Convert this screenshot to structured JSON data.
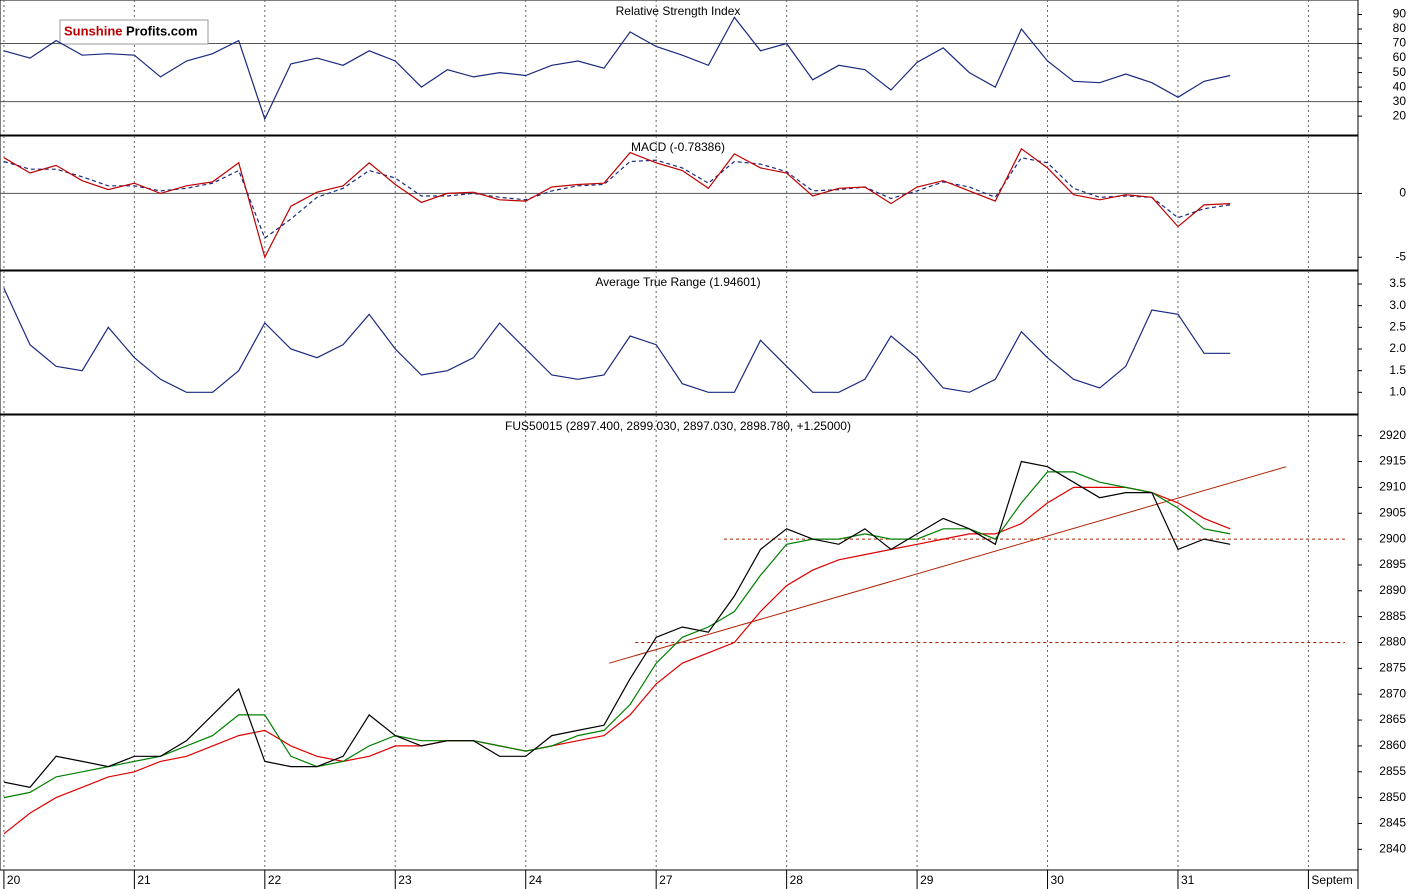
{
  "logo": {
    "part1": "Sunshine",
    "part2": "Profits.com"
  },
  "chart_data": [
    {
      "type": "line",
      "title": "Relative Strength Index",
      "x": [
        0,
        0.2,
        0.4,
        0.6,
        0.8,
        1,
        1.2,
        1.4,
        1.6,
        1.8,
        2,
        2.2,
        2.4,
        2.6,
        2.8,
        3,
        3.2,
        3.4,
        3.6,
        3.8,
        4,
        4.2,
        4.4,
        4.6,
        4.8,
        5,
        5.2,
        5.4,
        5.6,
        5.8,
        6,
        6.2,
        6.4,
        6.6,
        6.8,
        7,
        7.2,
        7.4,
        7.6,
        7.8,
        8,
        8.2,
        8.4,
        8.6,
        8.8,
        9,
        9.2,
        9.4
      ],
      "series": [
        {
          "name": "RSI",
          "color": "#1a2a80",
          "values": [
            65,
            60,
            72,
            62,
            63,
            62,
            47,
            58,
            63,
            72,
            18,
            56,
            60,
            55,
            65,
            58,
            40,
            52,
            47,
            50,
            48,
            55,
            58,
            53,
            78,
            68,
            62,
            55,
            88,
            65,
            70,
            45,
            55,
            52,
            38,
            57,
            67,
            50,
            40,
            80,
            58,
            44,
            43,
            49,
            43,
            33,
            44,
            48
          ]
        }
      ],
      "levels": [
        70,
        30
      ],
      "xlim": [
        -0.03,
        10.38
      ],
      "ylim": [
        7,
        100
      ],
      "yticks": [
        20,
        30,
        40,
        50,
        60,
        70,
        80,
        90
      ]
    },
    {
      "type": "line",
      "title": "MACD (-0.78386)",
      "x": [
        0,
        0.2,
        0.4,
        0.6,
        0.8,
        1,
        1.2,
        1.4,
        1.6,
        1.8,
        2,
        2.2,
        2.4,
        2.6,
        2.8,
        3,
        3.2,
        3.4,
        3.6,
        3.8,
        4,
        4.2,
        4.4,
        4.6,
        4.8,
        5,
        5.2,
        5.4,
        5.6,
        5.8,
        6,
        6.2,
        6.4,
        6.6,
        6.8,
        7,
        7.2,
        7.4,
        7.6,
        7.8,
        8,
        8.2,
        8.4,
        8.6,
        8.8,
        9,
        9.2,
        9.4
      ],
      "series": [
        {
          "name": "MACD",
          "color": "#c00000",
          "values": [
            2.8,
            1.6,
            2.2,
            1.0,
            0.3,
            0.8,
            0.0,
            0.6,
            0.9,
            2.4,
            -5.0,
            -1.0,
            0.1,
            0.6,
            2.4,
            0.7,
            -0.7,
            0.0,
            0.1,
            -0.5,
            -0.6,
            0.5,
            0.7,
            0.8,
            3.2,
            2.4,
            1.8,
            0.4,
            3.1,
            2.0,
            1.6,
            -0.2,
            0.4,
            0.5,
            -0.8,
            0.5,
            1.0,
            0.2,
            -0.6,
            3.5,
            2.0,
            -0.1,
            -0.5,
            -0.1,
            -0.3,
            -2.6,
            -0.9,
            -0.8
          ]
        },
        {
          "name": "Signal",
          "color": "#1a2a80",
          "dashed": true,
          "values": [
            2.5,
            1.9,
            1.9,
            1.3,
            0.6,
            0.6,
            0.2,
            0.4,
            0.8,
            1.8,
            -3.5,
            -2.0,
            -0.3,
            0.4,
            1.8,
            1.2,
            -0.2,
            -0.2,
            0.0,
            -0.3,
            -0.5,
            0.2,
            0.6,
            0.7,
            2.5,
            2.6,
            2.0,
            0.8,
            2.5,
            2.3,
            1.7,
            0.2,
            0.3,
            0.5,
            -0.4,
            0.2,
            0.9,
            0.5,
            -0.3,
            2.8,
            2.4,
            0.4,
            -0.3,
            -0.2,
            -0.3,
            -1.9,
            -1.2,
            -0.9
          ]
        }
      ],
      "levels": [
        0
      ],
      "xlim": [
        -0.03,
        10.38
      ],
      "ylim": [
        -6,
        4.5
      ],
      "yticks": [
        -5,
        0
      ]
    },
    {
      "type": "line",
      "title": "Average True Range (1.94601)",
      "x": [
        0,
        0.2,
        0.4,
        0.6,
        0.8,
        1,
        1.2,
        1.4,
        1.6,
        1.8,
        2,
        2.2,
        2.4,
        2.6,
        2.8,
        3,
        3.2,
        3.4,
        3.6,
        3.8,
        4,
        4.2,
        4.4,
        4.6,
        4.8,
        5,
        5.2,
        5.4,
        5.6,
        5.8,
        6,
        6.2,
        6.4,
        6.6,
        6.8,
        7,
        7.2,
        7.4,
        7.6,
        7.8,
        8,
        8.2,
        8.4,
        8.6,
        8.8,
        9,
        9.2,
        9.4
      ],
      "series": [
        {
          "name": "ATR",
          "color": "#1a2a80",
          "values": [
            3.4,
            2.1,
            1.6,
            1.5,
            2.5,
            1.8,
            1.3,
            1.0,
            1.0,
            1.5,
            2.6,
            2.0,
            1.8,
            2.1,
            2.8,
            2.0,
            1.4,
            1.5,
            1.8,
            2.6,
            2.0,
            1.4,
            1.3,
            1.4,
            2.3,
            2.1,
            1.2,
            1.0,
            1.0,
            2.2,
            1.6,
            1.0,
            1.0,
            1.3,
            2.3,
            1.8,
            1.1,
            1.0,
            1.3,
            2.4,
            1.8,
            1.3,
            1.1,
            1.6,
            2.9,
            2.8,
            1.9,
            1.9
          ]
        }
      ],
      "xlim": [
        -0.03,
        10.38
      ],
      "ylim": [
        0.5,
        3.8
      ],
      "yticks": [
        {
          "value": 1,
          "label": "1.0"
        },
        1.5,
        {
          "value": 2,
          "label": "2.0"
        },
        2.5,
        {
          "value": 3,
          "label": "3.0"
        },
        3.5
      ]
    },
    {
      "type": "line",
      "title": "FUS50015 (2897.400, 2899.030, 2897.030, 2898.780, +1.25000)",
      "x": [
        0,
        0.2,
        0.4,
        0.6,
        0.8,
        1,
        1.2,
        1.4,
        1.6,
        1.8,
        2,
        2.2,
        2.4,
        2.6,
        2.8,
        3,
        3.2,
        3.4,
        3.6,
        3.8,
        4,
        4.2,
        4.4,
        4.6,
        4.8,
        5,
        5.2,
        5.4,
        5.6,
        5.8,
        6,
        6.2,
        6.4,
        6.6,
        6.8,
        7,
        7.2,
        7.4,
        7.6,
        7.8,
        8,
        8.2,
        8.4,
        8.6,
        8.8,
        9,
        9.2,
        9.4
      ],
      "series": [
        {
          "name": "FUS50015",
          "color": "#000000",
          "values": [
            2853,
            2852,
            2858,
            2857,
            2856,
            2858,
            2858,
            2861,
            2866,
            2871,
            2857,
            2856,
            2856,
            2858,
            2866,
            2862,
            2860,
            2861,
            2861,
            2858,
            2858,
            2862,
            2863,
            2864,
            2873,
            2881,
            2883,
            2882,
            2889,
            2898,
            2902,
            2900,
            2899,
            2902,
            2898,
            2901,
            2904,
            2902,
            2899,
            2915,
            2914,
            2911,
            2908,
            2909,
            2909,
            2898,
            2900,
            2899
          ]
        },
        {
          "name": "SMA short",
          "color": "#008000",
          "values": [
            2850,
            2851,
            2854,
            2855,
            2856,
            2857,
            2858,
            2860,
            2862,
            2866,
            2866,
            2858,
            2856,
            2857,
            2860,
            2862,
            2861,
            2861,
            2861,
            2860,
            2859,
            2860,
            2862,
            2863,
            2868,
            2876,
            2881,
            2883,
            2886,
            2893,
            2899,
            2900,
            2900,
            2901,
            2900,
            2900,
            2902,
            2902,
            2900,
            2907,
            2913,
            2913,
            2911,
            2910,
            2909,
            2906,
            2902,
            2901
          ]
        },
        {
          "name": "SMA long",
          "color": "#e00000",
          "values": [
            2843,
            2847,
            2850,
            2852,
            2854,
            2855,
            2857,
            2858,
            2860,
            2862,
            2863,
            2860,
            2858,
            2857,
            2858,
            2860,
            2860,
            2861,
            2861,
            2860,
            2859,
            2860,
            2861,
            2862,
            2866,
            2872,
            2876,
            2878,
            2880,
            2886,
            2891,
            2894,
            2896,
            2897,
            2898,
            2899,
            2900,
            2901,
            2901,
            2903,
            2907,
            2910,
            2910,
            2910,
            2909,
            2907,
            2904,
            2902
          ]
        }
      ],
      "trendline": {
        "x": [
          4.64,
          9.83
        ],
        "y": [
          2876,
          2914
        ],
        "color": "#b02000"
      },
      "hlines": [
        {
          "y": 2900,
          "x": [
            5.52,
            10.28
          ]
        },
        {
          "y": 2880,
          "x": [
            4.84,
            10.28
          ]
        }
      ],
      "xlim": [
        -0.03,
        10.38
      ],
      "ylim": [
        2836,
        2924
      ],
      "yticks": [
        2840,
        2845,
        2850,
        2855,
        2860,
        2865,
        2870,
        2875,
        2880,
        2885,
        2890,
        2895,
        2900,
        2905,
        2910,
        2915,
        2920
      ],
      "xticks": [
        {
          "value": 0,
          "label": "20"
        },
        {
          "value": 1,
          "label": "21"
        },
        {
          "value": 2,
          "label": "22"
        },
        {
          "value": 3,
          "label": "23"
        },
        {
          "value": 4,
          "label": "24"
        },
        {
          "value": 5,
          "label": "27"
        },
        {
          "value": 6,
          "label": "28"
        },
        {
          "value": 7,
          "label": "29"
        },
        {
          "value": 8,
          "label": "30"
        },
        {
          "value": 9,
          "label": "31"
        },
        {
          "value": 10,
          "label": "Septem"
        }
      ]
    }
  ]
}
